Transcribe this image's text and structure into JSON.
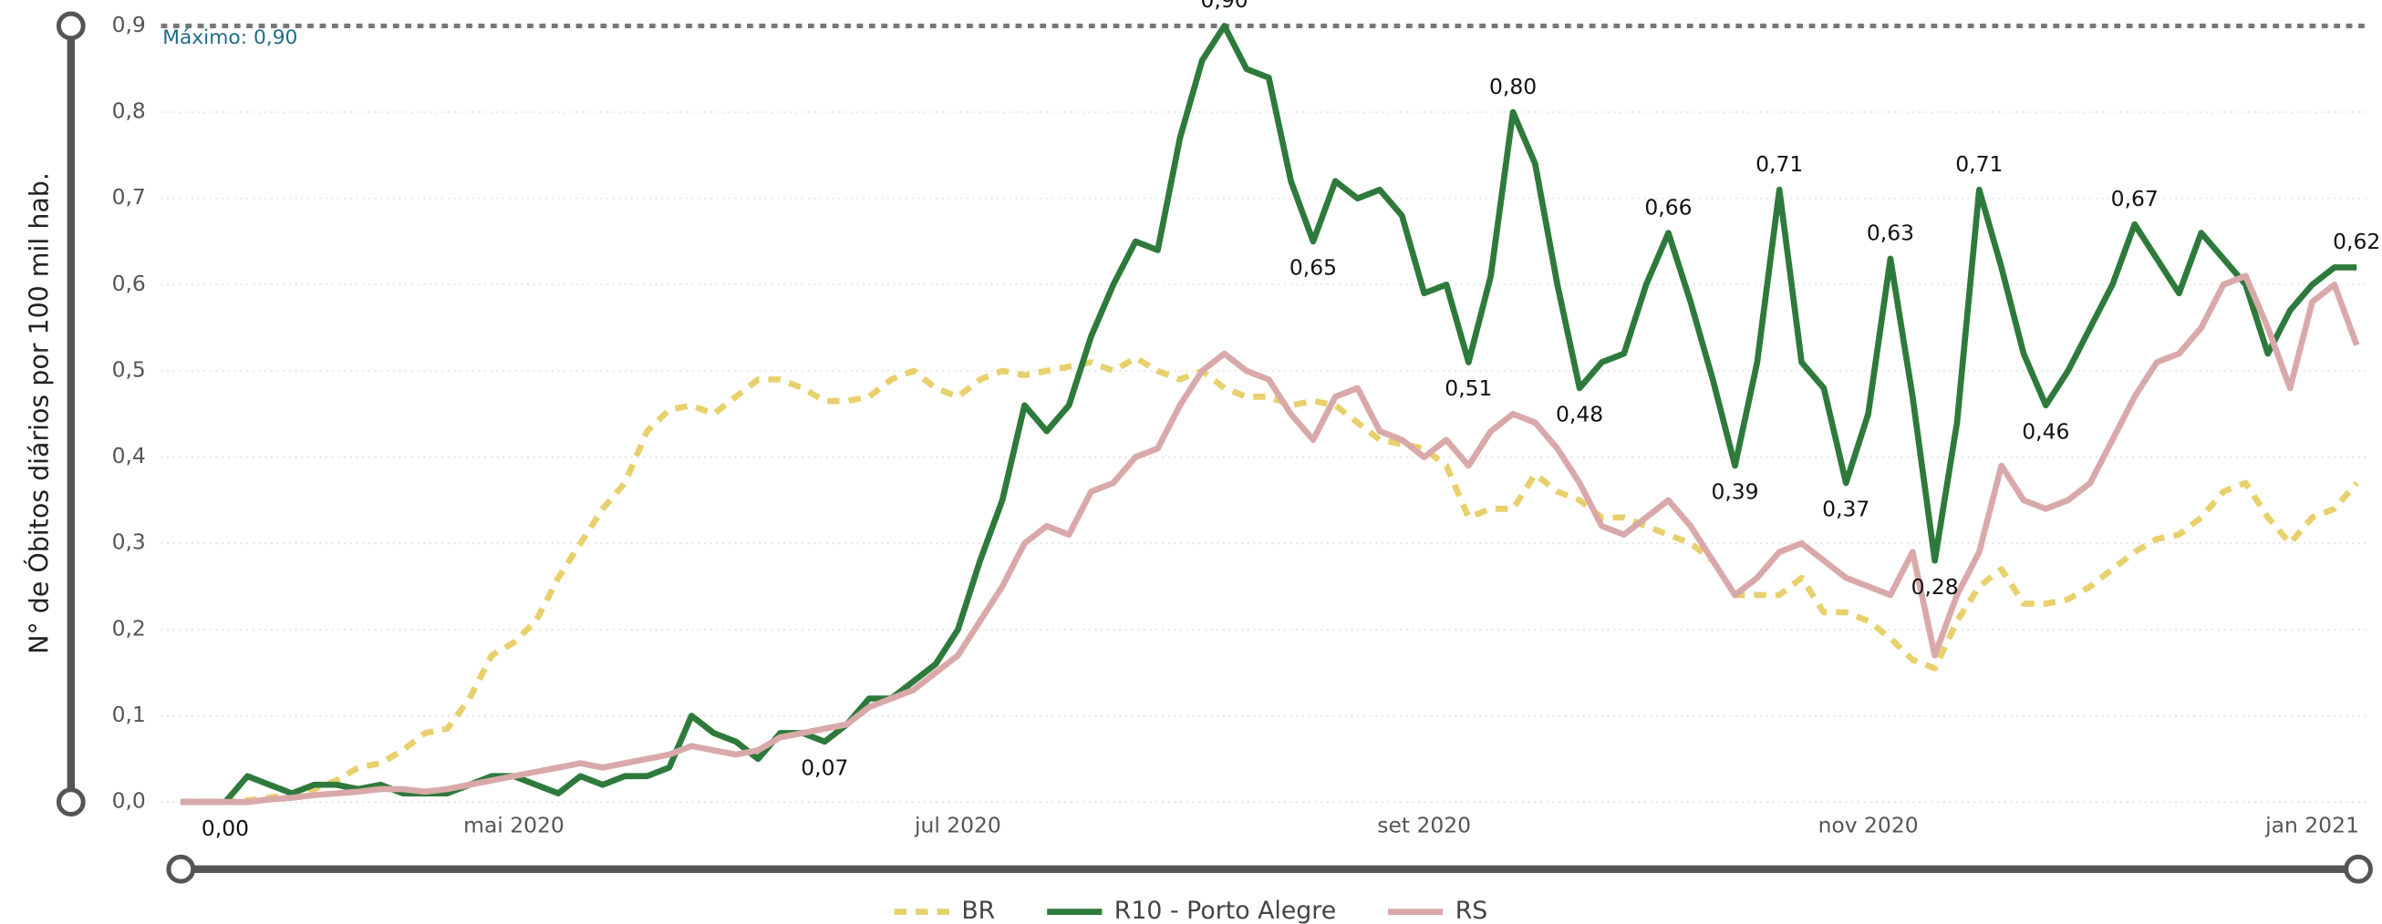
{
  "chart_data": {
    "type": "line",
    "y_axis_label": "N° de Óbitos diários por 100 mil hab.",
    "reference_line": {
      "value": 0.9,
      "label": "Máximo: 0,90"
    },
    "categories": [
      null,
      null,
      null,
      null,
      null,
      null,
      null,
      null,
      null,
      null,
      null,
      null,
      null,
      null,
      null,
      "mai 2020",
      null,
      null,
      null,
      null,
      null,
      null,
      null,
      null,
      null,
      null,
      null,
      null,
      null,
      null,
      null,
      null,
      null,
      null,
      null,
      "jul 2020",
      null,
      null,
      null,
      null,
      null,
      null,
      null,
      null,
      null,
      null,
      null,
      null,
      null,
      null,
      null,
      null,
      null,
      null,
      null,
      null,
      "set 2020",
      null,
      null,
      null,
      null,
      null,
      null,
      null,
      null,
      null,
      null,
      null,
      null,
      null,
      null,
      null,
      null,
      null,
      null,
      null,
      "nov 2020",
      null,
      null,
      null,
      null,
      null,
      null,
      null,
      null,
      null,
      null,
      null,
      null,
      null,
      null,
      null,
      null,
      null,
      null,
      null,
      "jan 2021",
      null,
      null
    ],
    "ylim": [
      0,
      0.9
    ],
    "yticks": [
      {
        "value": 0,
        "label": "0,0"
      },
      {
        "value": 0.1,
        "label": "0,1"
      },
      {
        "value": 0.2,
        "label": "0,2"
      },
      {
        "value": 0.3,
        "label": "0,3"
      },
      {
        "value": 0.4,
        "label": "0,4"
      },
      {
        "value": 0.5,
        "label": "0,5"
      },
      {
        "value": 0.6,
        "label": "0,6"
      },
      {
        "value": 0.7,
        "label": "0,7"
      },
      {
        "value": 0.8,
        "label": "0,8"
      },
      {
        "value": 0.9,
        "label": "0,9"
      }
    ],
    "grid": true,
    "legend": "bottom",
    "series": [
      {
        "name": "BR",
        "color": "#e8d06c",
        "style": "dashed",
        "values": [
          0,
          0,
          0,
          0.002,
          0.005,
          0.01,
          0.015,
          0.025,
          0.04,
          0.045,
          0.06,
          0.08,
          0.085,
          0.12,
          0.17,
          0.185,
          0.21,
          0.26,
          0.3,
          0.34,
          0.37,
          0.43,
          0.455,
          0.46,
          0.45,
          0.47,
          0.49,
          0.49,
          0.48,
          0.465,
          0.465,
          0.47,
          0.49,
          0.5,
          0.48,
          0.47,
          0.49,
          0.5,
          0.495,
          0.5,
          0.505,
          0.51,
          0.5,
          0.515,
          0.5,
          0.49,
          0.5,
          0.48,
          0.47,
          0.47,
          0.46,
          0.465,
          0.46,
          0.44,
          0.42,
          0.415,
          0.41,
          0.39,
          0.33,
          0.34,
          0.34,
          0.38,
          0.36,
          0.35,
          0.33,
          0.33,
          0.32,
          0.31,
          0.3,
          0.28,
          0.24,
          0.24,
          0.24,
          0.26,
          0.22,
          0.22,
          0.21,
          0.19,
          0.165,
          0.155,
          0.21,
          0.25,
          0.27,
          0.23,
          0.23,
          0.235,
          0.25,
          0.27,
          0.29,
          0.305,
          0.31,
          0.33,
          0.36,
          0.37,
          0.33,
          0.3,
          0.33,
          0.34,
          0.37
        ]
      },
      {
        "name": "R10 - Porto Alegre",
        "color": "#2e7a3c",
        "style": "solid",
        "values": [
          0,
          0,
          0,
          0.03,
          0.02,
          0.01,
          0.02,
          0.02,
          0.015,
          0.02,
          0.01,
          0.01,
          0.01,
          0.02,
          0.03,
          0.03,
          0.02,
          0.01,
          0.03,
          0.02,
          0.03,
          0.03,
          0.04,
          0.1,
          0.08,
          0.07,
          0.05,
          0.08,
          0.08,
          0.07,
          0.09,
          0.12,
          0.12,
          0.14,
          0.16,
          0.2,
          0.28,
          0.35,
          0.46,
          0.43,
          0.46,
          0.54,
          0.6,
          0.65,
          0.64,
          0.77,
          0.86,
          0.9,
          0.85,
          0.84,
          0.72,
          0.65,
          0.72,
          0.7,
          0.71,
          0.68,
          0.59,
          0.6,
          0.51,
          0.61,
          0.8,
          0.74,
          0.6,
          0.48,
          0.51,
          0.52,
          0.6,
          0.66,
          0.58,
          0.49,
          0.39,
          0.51,
          0.71,
          0.51,
          0.48,
          0.37,
          0.45,
          0.63,
          0.47,
          0.28,
          0.44,
          0.71,
          0.62,
          0.52,
          0.46,
          0.5,
          0.55,
          0.6,
          0.67,
          0.63,
          0.59,
          0.66,
          0.63,
          0.6,
          0.52,
          0.57,
          0.6,
          0.62,
          0.62
        ],
        "value_labels": [
          null,
          null,
          "0,00",
          null,
          null,
          null,
          null,
          null,
          null,
          null,
          null,
          null,
          null,
          null,
          null,
          null,
          null,
          null,
          null,
          null,
          null,
          null,
          null,
          null,
          null,
          null,
          null,
          null,
          null,
          "0,07",
          null,
          null,
          null,
          null,
          null,
          null,
          null,
          null,
          null,
          null,
          null,
          null,
          null,
          null,
          null,
          null,
          null,
          "0,90",
          null,
          null,
          null,
          "0,65",
          null,
          null,
          null,
          null,
          null,
          null,
          "0,51",
          null,
          "0,80",
          null,
          null,
          "0,48",
          null,
          null,
          null,
          "0,66",
          null,
          null,
          "0,39",
          null,
          "0,71",
          null,
          null,
          "0,37",
          null,
          "0,63",
          null,
          "0,28",
          null,
          "0,71",
          null,
          null,
          "0,46",
          null,
          null,
          null,
          "0,67",
          null,
          null,
          null,
          null,
          null,
          null,
          null,
          null,
          null,
          "0,62"
        ]
      },
      {
        "name": "RS",
        "color": "#d9a9a9",
        "style": "solid",
        "values": [
          0,
          0,
          0,
          0,
          0.003,
          0.005,
          0.008,
          0.01,
          0.012,
          0.015,
          0.015,
          0.012,
          0.015,
          0.02,
          0.025,
          0.03,
          0.035,
          0.04,
          0.045,
          0.04,
          0.045,
          0.05,
          0.055,
          0.065,
          0.06,
          0.055,
          0.06,
          0.075,
          0.08,
          0.085,
          0.09,
          0.11,
          0.12,
          0.13,
          0.15,
          0.17,
          0.21,
          0.25,
          0.3,
          0.32,
          0.31,
          0.36,
          0.37,
          0.4,
          0.41,
          0.46,
          0.5,
          0.52,
          0.5,
          0.49,
          0.45,
          0.42,
          0.47,
          0.48,
          0.43,
          0.42,
          0.4,
          0.42,
          0.39,
          0.43,
          0.45,
          0.44,
          0.41,
          0.37,
          0.32,
          0.31,
          0.33,
          0.35,
          0.32,
          0.28,
          0.24,
          0.26,
          0.29,
          0.3,
          0.28,
          0.26,
          0.25,
          0.24,
          0.29,
          0.17,
          0.24,
          0.29,
          0.39,
          0.35,
          0.34,
          0.35,
          0.37,
          0.42,
          0.47,
          0.51,
          0.52,
          0.55,
          0.6,
          0.61,
          0.55,
          0.48,
          0.58,
          0.6,
          0.53
        ]
      }
    ]
  }
}
